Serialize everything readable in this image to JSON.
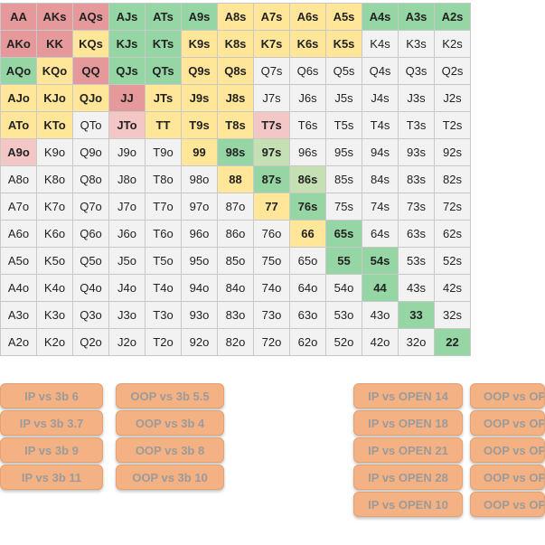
{
  "colors": {
    "fold": "#f2f2f2",
    "pink_dark": "#e6999b",
    "pink_light": "#f4c7c7",
    "yellow": "#ffe699",
    "green": "#96d5a4",
    "green_light": "#c5e0b3",
    "button_fill": "#f4b183",
    "button_text": "#9b9b9b"
  },
  "grid": {
    "rows": [
      [
        "AA",
        "AKs",
        "AQs",
        "AJs",
        "ATs",
        "A9s",
        "A8s",
        "A7s",
        "A6s",
        "A5s",
        "A4s",
        "A3s",
        "A2s"
      ],
      [
        "AKo",
        "KK",
        "KQs",
        "KJs",
        "KTs",
        "K9s",
        "K8s",
        "K7s",
        "K6s",
        "K5s",
        "K4s",
        "K3s",
        "K2s"
      ],
      [
        "AQo",
        "KQo",
        "QQ",
        "QJs",
        "QTs",
        "Q9s",
        "Q8s",
        "Q7s",
        "Q6s",
        "Q5s",
        "Q4s",
        "Q3s",
        "Q2s"
      ],
      [
        "AJo",
        "KJo",
        "QJo",
        "JJ",
        "JTs",
        "J9s",
        "J8s",
        "J7s",
        "J6s",
        "J5s",
        "J4s",
        "J3s",
        "J2s"
      ],
      [
        "ATo",
        "KTo",
        "QTo",
        "JTo",
        "TT",
        "T9s",
        "T8s",
        "T7s",
        "T6s",
        "T5s",
        "T4s",
        "T3s",
        "T2s"
      ],
      [
        "A9o",
        "K9o",
        "Q9o",
        "J9o",
        "T9o",
        "99",
        "98s",
        "97s",
        "96s",
        "95s",
        "94s",
        "93s",
        "92s"
      ],
      [
        "A8o",
        "K8o",
        "Q8o",
        "J8o",
        "T8o",
        "98o",
        "88",
        "87s",
        "86s",
        "85s",
        "84s",
        "83s",
        "82s"
      ],
      [
        "A7o",
        "K7o",
        "Q7o",
        "J7o",
        "T7o",
        "97o",
        "87o",
        "77",
        "76s",
        "75s",
        "74s",
        "73s",
        "72s"
      ],
      [
        "A6o",
        "K6o",
        "Q6o",
        "J6o",
        "T6o",
        "96o",
        "86o",
        "76o",
        "66",
        "65s",
        "64s",
        "63s",
        "62s"
      ],
      [
        "A5o",
        "K5o",
        "Q5o",
        "J5o",
        "T5o",
        "95o",
        "85o",
        "75o",
        "65o",
        "55",
        "54s",
        "53s",
        "52s"
      ],
      [
        "A4o",
        "K4o",
        "Q4o",
        "J4o",
        "T4o",
        "94o",
        "84o",
        "74o",
        "64o",
        "54o",
        "44",
        "43s",
        "42s"
      ],
      [
        "A3o",
        "K3o",
        "Q3o",
        "J3o",
        "T3o",
        "93o",
        "83o",
        "73o",
        "63o",
        "53o",
        "43o",
        "33",
        "32s"
      ],
      [
        "A2o",
        "K2o",
        "Q2o",
        "J2o",
        "T2o",
        "92o",
        "82o",
        "72o",
        "62o",
        "52o",
        "42o",
        "32o",
        "22"
      ]
    ],
    "fills": [
      [
        "pink_dark",
        "pink_dark",
        "pink_dark",
        "green",
        "green",
        "green",
        "yellow",
        "yellow",
        "yellow",
        "yellow",
        "green",
        "green",
        "green"
      ],
      [
        "pink_dark",
        "pink_dark",
        "yellow",
        "green",
        "green",
        "yellow",
        "yellow",
        "yellow",
        "yellow",
        "yellow",
        "fold",
        "fold",
        "fold"
      ],
      [
        "green",
        "yellow",
        "pink_dark",
        "green",
        "green",
        "yellow",
        "yellow",
        "fold",
        "fold",
        "fold",
        "fold",
        "fold",
        "fold"
      ],
      [
        "yellow",
        "yellow",
        "yellow",
        "pink_dark",
        "yellow",
        "yellow",
        "yellow",
        "fold",
        "fold",
        "fold",
        "fold",
        "fold",
        "fold"
      ],
      [
        "yellow",
        "yellow",
        "fold",
        "pink_light",
        "yellow",
        "yellow",
        "yellow",
        "pink_light",
        "fold",
        "fold",
        "fold",
        "fold",
        "fold"
      ],
      [
        "pink_light",
        "fold",
        "fold",
        "fold",
        "fold",
        "yellow",
        "green",
        "green_light",
        "fold",
        "fold",
        "fold",
        "fold",
        "fold"
      ],
      [
        "fold",
        "fold",
        "fold",
        "fold",
        "fold",
        "fold",
        "yellow",
        "green",
        "green_light",
        "fold",
        "fold",
        "fold",
        "fold"
      ],
      [
        "fold",
        "fold",
        "fold",
        "fold",
        "fold",
        "fold",
        "fold",
        "yellow",
        "green",
        "fold",
        "fold",
        "fold",
        "fold"
      ],
      [
        "fold",
        "fold",
        "fold",
        "fold",
        "fold",
        "fold",
        "fold",
        "fold",
        "yellow",
        "green",
        "fold",
        "fold",
        "fold"
      ],
      [
        "fold",
        "fold",
        "fold",
        "fold",
        "fold",
        "fold",
        "fold",
        "fold",
        "fold",
        "green",
        "green",
        "fold",
        "fold"
      ],
      [
        "fold",
        "fold",
        "fold",
        "fold",
        "fold",
        "fold",
        "fold",
        "fold",
        "fold",
        "fold",
        "green",
        "fold",
        "fold"
      ],
      [
        "fold",
        "fold",
        "fold",
        "fold",
        "fold",
        "fold",
        "fold",
        "fold",
        "fold",
        "fold",
        "fold",
        "green",
        "fold"
      ],
      [
        "fold",
        "fold",
        "fold",
        "fold",
        "fold",
        "fold",
        "fold",
        "fold",
        "fold",
        "fold",
        "fold",
        "fold",
        "green"
      ]
    ]
  },
  "buttons": {
    "ip_vs_3b": [
      "IP vs 3b 6",
      "IP vs 3b 3.7",
      "IP vs 3b 9",
      "IP vs 3b 11"
    ],
    "oop_vs_3b": [
      "OOP vs 3b 5.5",
      "OOP vs 3b 4",
      "OOP vs 3b 8",
      "OOP vs 3b 10"
    ],
    "ip_vs_open": [
      "IP vs OPEN 14",
      "IP vs OPEN 18",
      "IP vs OPEN 21",
      "IP vs OPEN 28",
      "IP vs OPEN 10"
    ],
    "oop_vs_open_visible": [
      "OOP vs OP",
      "OOP vs OP",
      "OOP vs OP",
      "OOP vs OP",
      "OOP vs OP"
    ]
  }
}
